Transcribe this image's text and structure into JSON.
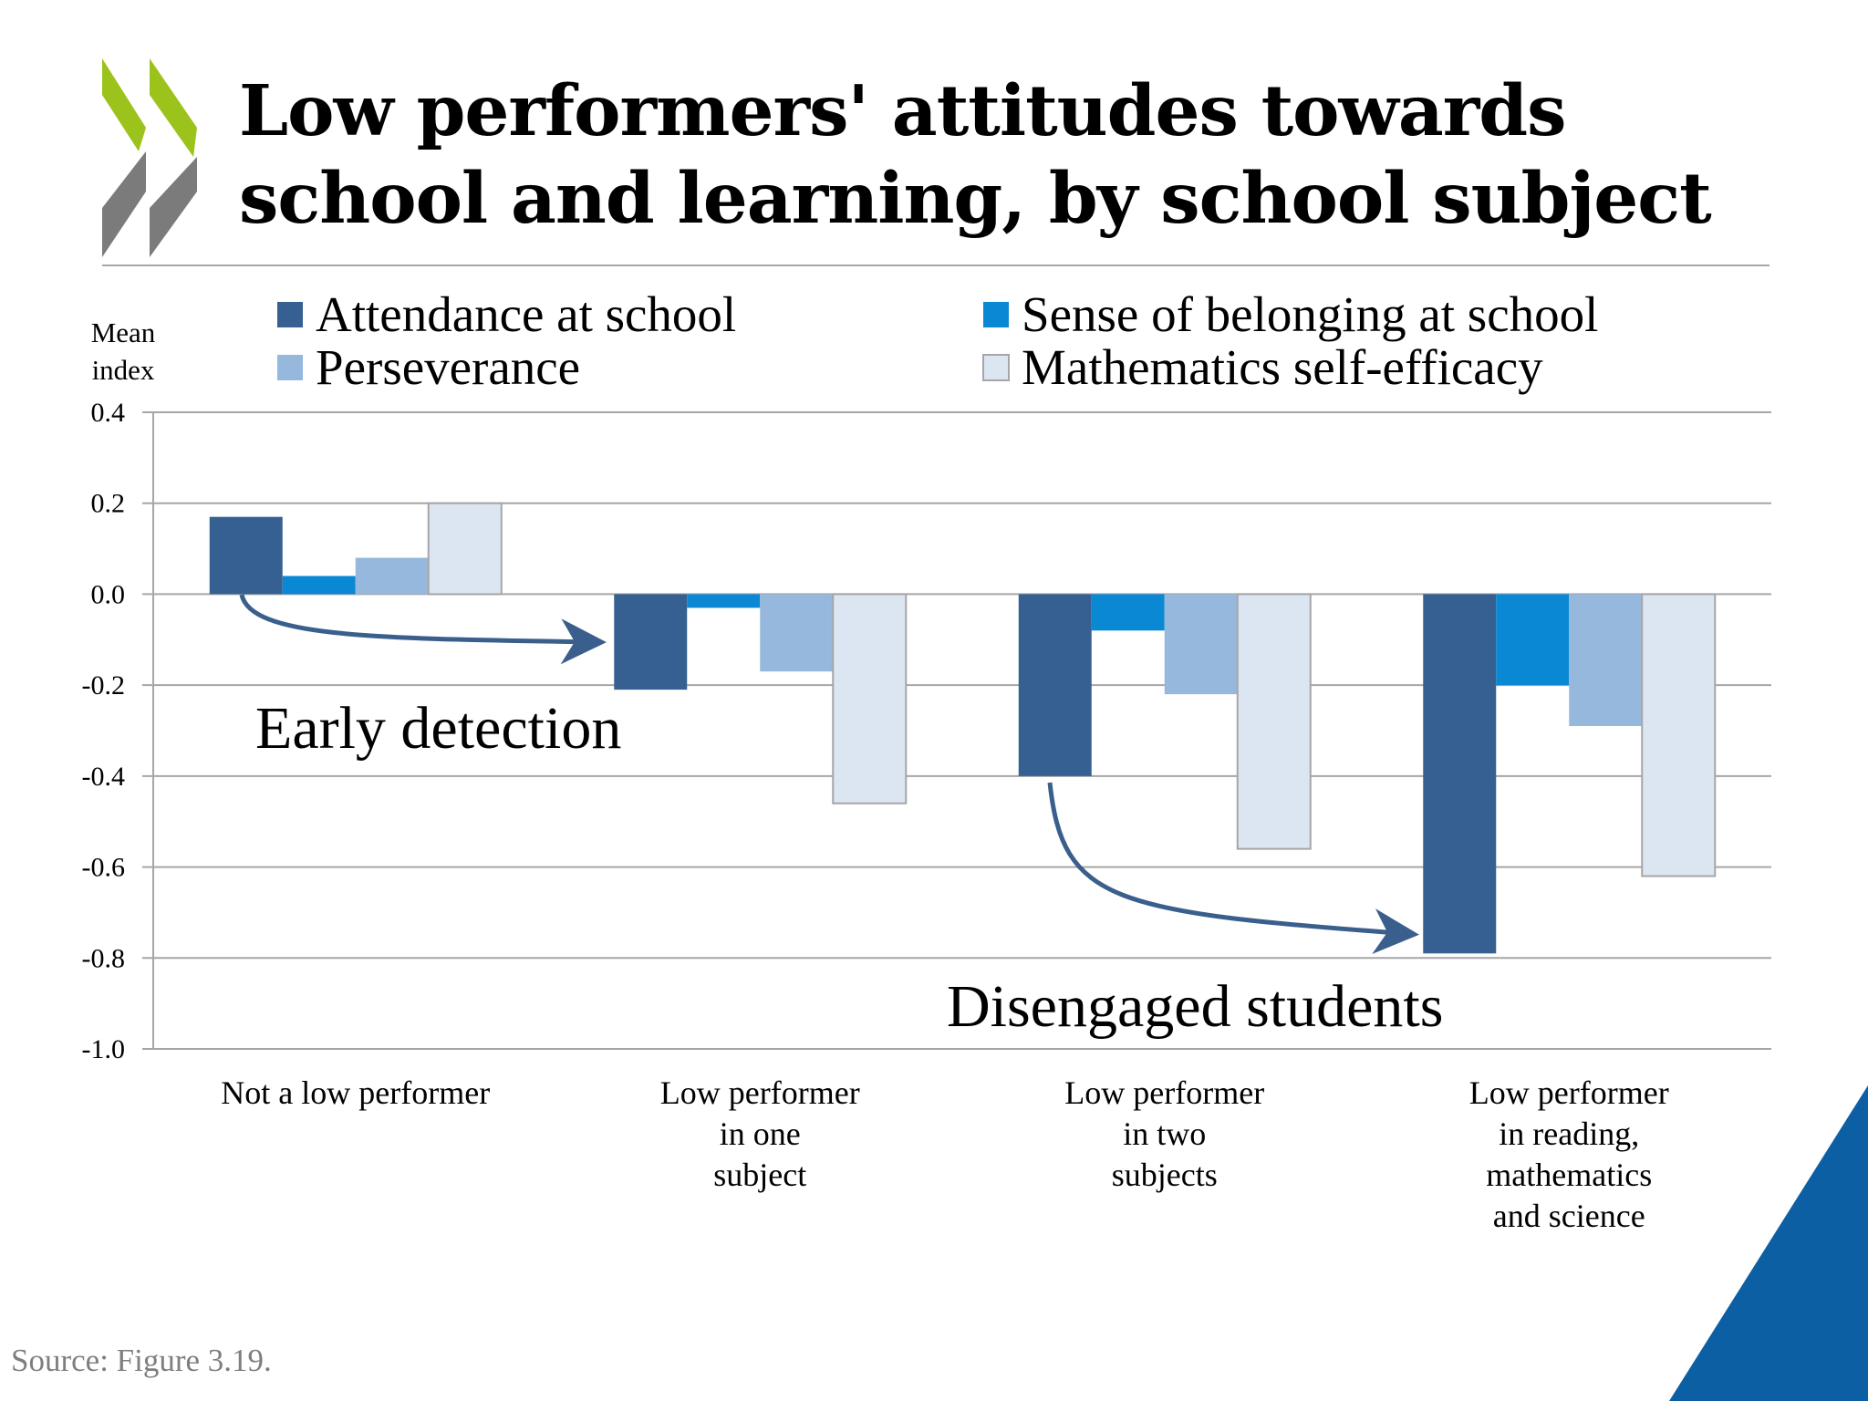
{
  "slide": {
    "title_line1": "Low performers' attitudes towards",
    "title_line2": "school and learning, by school subject",
    "source": "Source: Figure 3.19.",
    "colors": {
      "logo_green": "#9bc31c",
      "logo_gray": "#7b7b7b",
      "corner_blue": "#0d5fa3",
      "arrow": "#3a5f8c"
    }
  },
  "chart_data": {
    "type": "bar",
    "ylabel_line1": "Mean",
    "ylabel_line2": "index",
    "ylim": [
      -1.0,
      0.4
    ],
    "yticks": [
      "0.4",
      "0.2",
      "0.0",
      "-0.2",
      "-0.4",
      "-0.6",
      "-0.8",
      "-1.0"
    ],
    "grid": true,
    "legend_position": "top",
    "categories": [
      [
        "Not a low performer"
      ],
      [
        "Low performer",
        "in one",
        "subject"
      ],
      [
        "Low performer",
        "in two",
        "subjects"
      ],
      [
        "Low performer",
        "in reading,",
        "mathematics",
        "and science"
      ]
    ],
    "series": [
      {
        "name": "Attendance at school",
        "color": "#376092",
        "values": [
          0.17,
          -0.21,
          -0.4,
          -0.79
        ]
      },
      {
        "name": "Sense of belonging at school",
        "color": "#0a88d4",
        "values": [
          0.04,
          -0.03,
          -0.08,
          -0.2
        ]
      },
      {
        "name": "Perseverance",
        "color": "#95b8dc",
        "values": [
          0.08,
          -0.17,
          -0.22,
          -0.29
        ]
      },
      {
        "name": "Mathematics self-efficacy",
        "color": "#dce6f2",
        "values": [
          0.2,
          -0.46,
          -0.56,
          -0.62
        ]
      }
    ],
    "annotations": [
      {
        "text": "Early detection"
      },
      {
        "text": "Disengaged students"
      }
    ]
  }
}
